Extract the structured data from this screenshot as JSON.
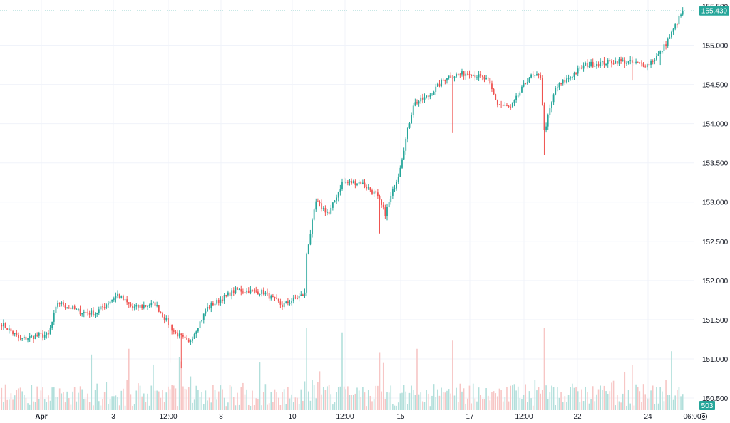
{
  "chart_data": {
    "type": "candlestick",
    "ylim": [
      150.4,
      155.55
    ],
    "y_ticks": [
      "150.500",
      "151.000",
      "151.500",
      "152.000",
      "152.500",
      "153.000",
      "153.500",
      "154.000",
      "154.500",
      "155.000",
      "155.500"
    ],
    "x_ticks": [
      "Apr",
      "3",
      "12:00",
      "8",
      "10",
      "12:00",
      "15",
      "17",
      "12:00",
      "22",
      "24",
      "06:00"
    ],
    "last_price": "155.439",
    "last_volume": "503",
    "grid": true,
    "colors": {
      "up": "#26a69a",
      "down": "#ef5350",
      "grid": "#f0f3fa",
      "text": "#131722",
      "volume_up": "#b2dfdb",
      "volume_down": "#f7c6c5"
    },
    "anchors": [
      {
        "i": 0,
        "p": 151.45
      },
      {
        "i": 10,
        "p": 151.25
      },
      {
        "i": 20,
        "p": 151.3
      },
      {
        "i": 25,
        "p": 151.3
      },
      {
        "i": 30,
        "p": 151.72
      },
      {
        "i": 42,
        "p": 151.6
      },
      {
        "i": 50,
        "p": 151.58
      },
      {
        "i": 62,
        "p": 151.82
      },
      {
        "i": 70,
        "p": 151.65
      },
      {
        "i": 82,
        "p": 151.7
      },
      {
        "i": 92,
        "p": 151.35
      },
      {
        "i": 100,
        "p": 151.2
      },
      {
        "i": 110,
        "p": 151.65
      },
      {
        "i": 125,
        "p": 151.88
      },
      {
        "i": 140,
        "p": 151.85
      },
      {
        "i": 150,
        "p": 151.68
      },
      {
        "i": 162,
        "p": 151.83
      },
      {
        "i": 163,
        "p": 152.35
      },
      {
        "i": 168,
        "p": 153.0
      },
      {
        "i": 175,
        "p": 152.85
      },
      {
        "i": 182,
        "p": 153.25
      },
      {
        "i": 192,
        "p": 153.25
      },
      {
        "i": 200,
        "p": 153.1
      },
      {
        "i": 205,
        "p": 152.85
      },
      {
        "i": 212,
        "p": 153.35
      },
      {
        "i": 220,
        "p": 154.25
      },
      {
        "i": 228,
        "p": 154.35
      },
      {
        "i": 238,
        "p": 154.6
      },
      {
        "i": 250,
        "p": 154.65
      },
      {
        "i": 260,
        "p": 154.55
      },
      {
        "i": 265,
        "p": 154.25
      },
      {
        "i": 272,
        "p": 154.2
      },
      {
        "i": 282,
        "p": 154.6
      },
      {
        "i": 288,
        "p": 154.6
      },
      {
        "i": 290,
        "p": 153.9
      },
      {
        "i": 296,
        "p": 154.45
      },
      {
        "i": 312,
        "p": 154.75
      },
      {
        "i": 330,
        "p": 154.8
      },
      {
        "i": 345,
        "p": 154.75
      },
      {
        "i": 352,
        "p": 154.9
      },
      {
        "i": 358,
        "p": 155.15
      },
      {
        "i": 364,
        "p": 155.439
      }
    ],
    "spikes": [
      {
        "i": 90,
        "low": 150.95
      },
      {
        "i": 96,
        "low": 150.88
      },
      {
        "i": 202,
        "low": 152.6
      },
      {
        "i": 241,
        "low": 153.88
      },
      {
        "i": 290,
        "low": 153.6
      },
      {
        "i": 337,
        "low": 154.55
      },
      {
        "i": 352,
        "low": 154.75
      }
    ],
    "volume_spikes": [
      {
        "i": 163,
        "v": 1.0
      },
      {
        "i": 182,
        "v": 0.95
      },
      {
        "i": 202,
        "v": 0.7
      },
      {
        "i": 222,
        "v": 0.75
      },
      {
        "i": 241,
        "v": 0.85
      },
      {
        "i": 290,
        "v": 1.0
      },
      {
        "i": 68,
        "v": 0.75
      },
      {
        "i": 48,
        "v": 0.68
      },
      {
        "i": 95,
        "v": 0.65
      },
      {
        "i": 337,
        "v": 0.55
      },
      {
        "i": 358,
        "v": 0.72
      }
    ]
  },
  "ui": {
    "settings_icon": "gear-icon"
  }
}
